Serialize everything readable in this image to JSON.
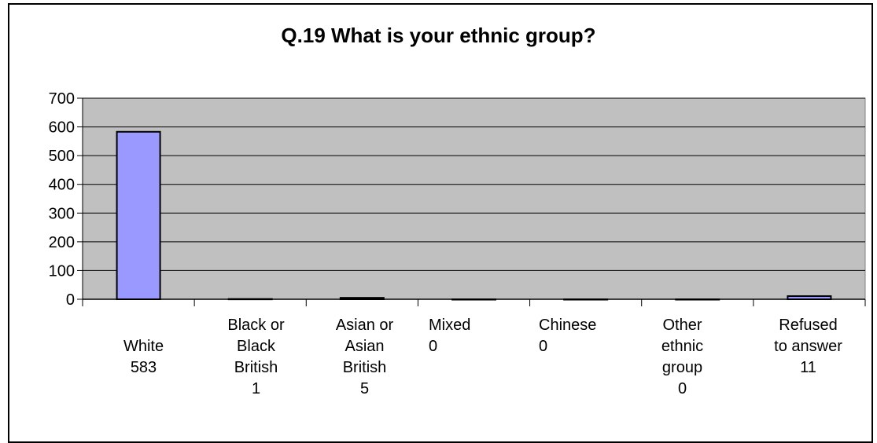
{
  "chart_data": {
    "type": "bar",
    "title": "Q.19 What is your ethnic group?",
    "categories": [
      "White",
      "Black or Black British",
      "Asian or Asian British",
      "Mixed",
      "Chinese",
      "Other ethnic group",
      "Refused to answer"
    ],
    "category_labels": [
      "White\n583",
      "Black or\nBlack\nBritish\n1",
      "Asian or\nAsian\nBritish\n5",
      "Mixed\n0",
      "Chinese\n0",
      "Other\nethnic\ngroup\n0",
      "Refused\nto answer\n11"
    ],
    "values": [
      583,
      1,
      5,
      0,
      0,
      0,
      11
    ],
    "ylim": [
      0,
      700
    ],
    "yticks": [
      "0",
      "100",
      "200",
      "300",
      "400",
      "500",
      "600",
      "700"
    ],
    "grid": true,
    "legend": "none",
    "colors": {
      "plot_area": "#c0c0c0",
      "bar": "#9999ff",
      "bar_edge": "#000000",
      "grid": "#000000"
    }
  }
}
